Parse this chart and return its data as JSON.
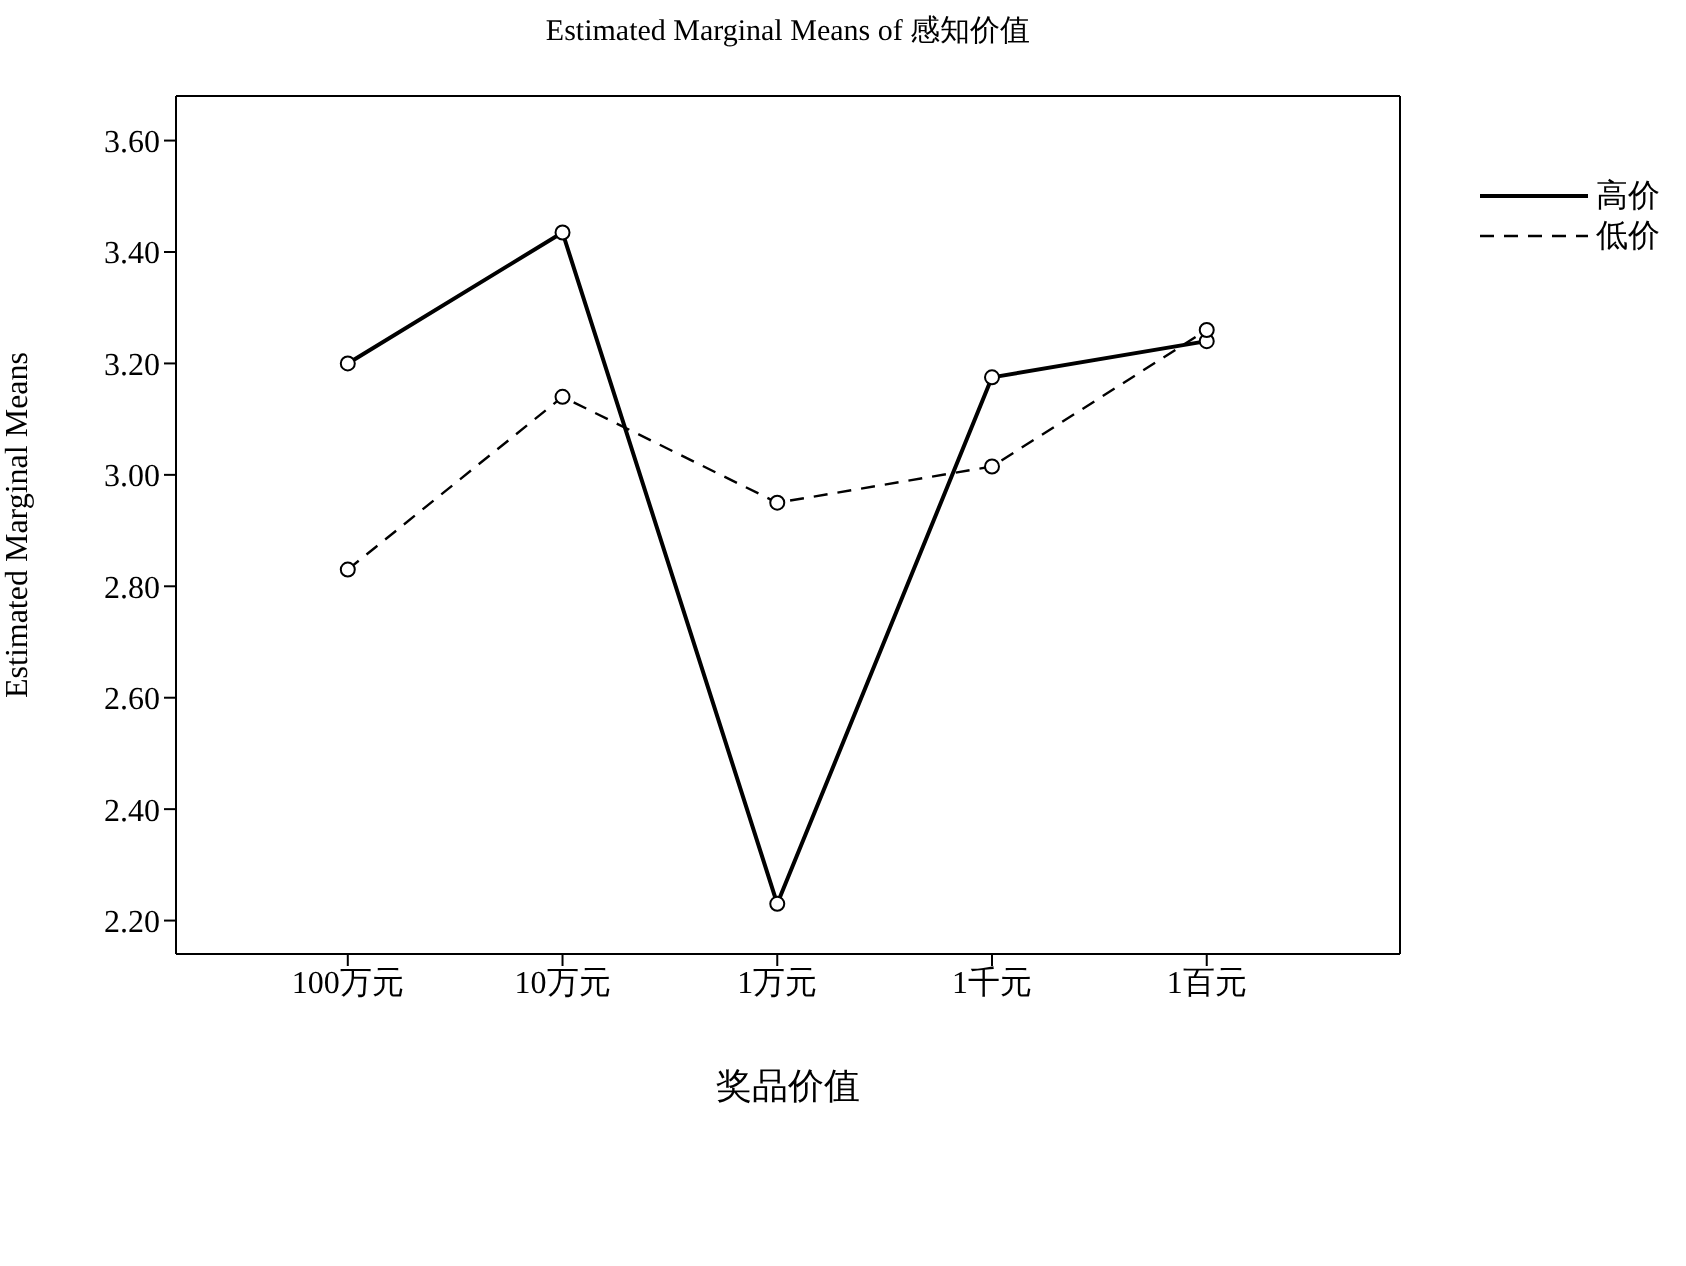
{
  "chart_data": {
    "type": "line",
    "title": "Estimated Marginal Means of 感知价值",
    "xlabel": "奖品价值",
    "ylabel": "Estimated Marginal Means",
    "categories": [
      "100万元",
      "10万元",
      "1万元",
      "1千元",
      "1百元"
    ],
    "series": [
      {
        "name": "高价",
        "color": "#000000",
        "line_style": "solid",
        "values": [
          3.2,
          3.435,
          2.23,
          3.175,
          3.24
        ]
      },
      {
        "name": "低价",
        "color": "#000000",
        "line_style": "dashed",
        "values": [
          2.83,
          3.14,
          2.95,
          3.015,
          3.26
        ]
      }
    ],
    "ylim": [
      2.14,
      3.68
    ],
    "yticks": [
      {
        "value": 2.2,
        "label": "2.20"
      },
      {
        "value": 2.4,
        "label": "2.40"
      },
      {
        "value": 2.6,
        "label": "2.60"
      },
      {
        "value": 2.8,
        "label": "2.80"
      },
      {
        "value": 3.0,
        "label": "3.00"
      },
      {
        "value": 3.2,
        "label": "3.20"
      },
      {
        "value": 3.4,
        "label": "3.40"
      },
      {
        "value": 3.6,
        "label": "3.60"
      }
    ],
    "marker": "circle",
    "grid": false,
    "legend": "top right"
  }
}
